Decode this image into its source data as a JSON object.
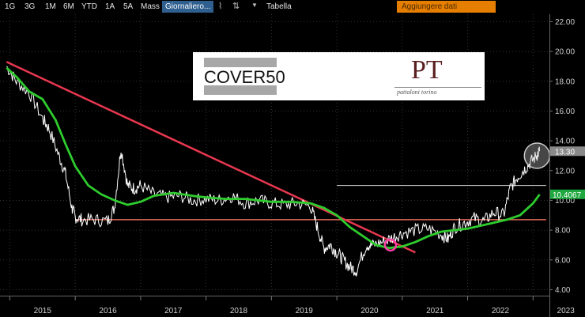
{
  "toolbar": {
    "items": [
      "1G",
      "3G",
      "1M",
      "6M",
      "YTD",
      "1A",
      "5A",
      "Mass"
    ],
    "active": "Giornaliero...",
    "chart_icon": "line-chart-icon",
    "updown_icon": "up-down-arrows-icon",
    "dropdown_icon": "chevron-down-icon",
    "table_label": "Tabella",
    "add_data_label": "Aggiungere dati"
  },
  "logo": {
    "cover": "COVER50",
    "pt": "PT",
    "pt_sub": "pattaloni torino"
  },
  "chart_data": {
    "type": "line",
    "x_ticks": [
      "2015",
      "2016",
      "2017",
      "2018",
      "2019",
      "2020",
      "2021",
      "2022",
      "2023"
    ],
    "y_ticks": [
      "22.00",
      "20.00",
      "18.00",
      "16.00",
      "14.00",
      "12.00",
      "10.00",
      "8.00",
      "6.00",
      "4.00"
    ],
    "ylim": [
      3.6,
      22.5
    ],
    "grid": true,
    "price_label": "13.30",
    "ma_label": "10.4067",
    "colors": {
      "price": "#ffffff",
      "moving_average": "#2ecc2e",
      "trendline": "#e8374f",
      "support": "#e36a5a",
      "resistance": "#d9d9d9",
      "highlight_circle": "#ff3fa6",
      "price_marker": "#8a8a8a",
      "ma_marker": "#1fa83f"
    },
    "series": [
      {
        "values_x": [
          2014.95,
          2015.1,
          2015.3,
          2015.5,
          2015.6,
          2015.75,
          2015.85,
          2015.95,
          2016.0,
          2016.1,
          2016.3,
          2016.5,
          2016.6,
          2016.7,
          2016.8,
          2016.9,
          2017.0,
          2017.2,
          2017.4,
          2017.6,
          2017.8,
          2018.0,
          2018.2,
          2018.4,
          2018.6,
          2018.8,
          2019.0,
          2019.2,
          2019.4,
          2019.6,
          2019.7,
          2019.8,
          2019.9,
          2020.0,
          2020.1,
          2020.2,
          2020.3,
          2020.45,
          2020.55,
          2020.7,
          2020.85,
          2021.0,
          2021.2,
          2021.4,
          2021.6,
          2021.7,
          2021.8,
          2021.95,
          2022.1,
          2022.25,
          2022.4,
          2022.55,
          2022.65,
          2022.75,
          2022.85,
          2022.95,
          2023.05,
          2023.1
        ],
        "values": [
          19.0,
          18.0,
          17.2,
          15.5,
          14.8,
          13.0,
          11.8,
          9.5,
          8.9,
          8.7,
          8.7,
          8.6,
          9.5,
          13.5,
          11.0,
          10.8,
          11.0,
          10.4,
          10.2,
          10.3,
          10.0,
          10.1,
          10.0,
          10.3,
          9.8,
          10.0,
          9.8,
          9.7,
          9.8,
          9.6,
          8.2,
          6.8,
          7.0,
          6.5,
          6.0,
          5.5,
          5.3,
          7.0,
          7.0,
          7.2,
          7.5,
          7.8,
          8.0,
          8.1,
          7.7,
          7.4,
          8.2,
          8.5,
          8.8,
          8.6,
          9.2,
          9.0,
          10.8,
          11.5,
          12.0,
          12.5,
          13.0,
          13.3
        ]
      },
      {
        "values_x": [
          2014.95,
          2015.1,
          2015.3,
          2015.5,
          2015.7,
          2015.85,
          2016.0,
          2016.2,
          2016.4,
          2016.6,
          2016.8,
          2017.0,
          2017.2,
          2017.5,
          2017.8,
          2018.0,
          2018.3,
          2018.6,
          2019.0,
          2019.3,
          2019.6,
          2019.8,
          2020.0,
          2020.2,
          2020.4,
          2020.6,
          2020.8,
          2021.0,
          2021.2,
          2021.4,
          2021.6,
          2021.8,
          2022.0,
          2022.2,
          2022.4,
          2022.6,
          2022.8,
          2023.0,
          2023.1
        ],
        "values": [
          18.9,
          18.3,
          17.3,
          16.8,
          15.4,
          13.8,
          12.3,
          11.0,
          10.4,
          10.0,
          9.7,
          9.9,
          10.3,
          10.5,
          10.3,
          10.2,
          10.1,
          10.1,
          9.9,
          9.9,
          9.8,
          9.5,
          9.0,
          8.2,
          7.6,
          7.0,
          6.8,
          6.9,
          7.2,
          7.6,
          7.9,
          8.0,
          8.1,
          8.3,
          8.5,
          8.7,
          9.0,
          9.8,
          10.4
        ]
      }
    ],
    "trendline": {
      "x": [
        2014.95,
        2021.2
      ],
      "y": [
        19.3,
        6.5
      ]
    },
    "support_level": 8.7,
    "resistance_level": 11.0
  }
}
